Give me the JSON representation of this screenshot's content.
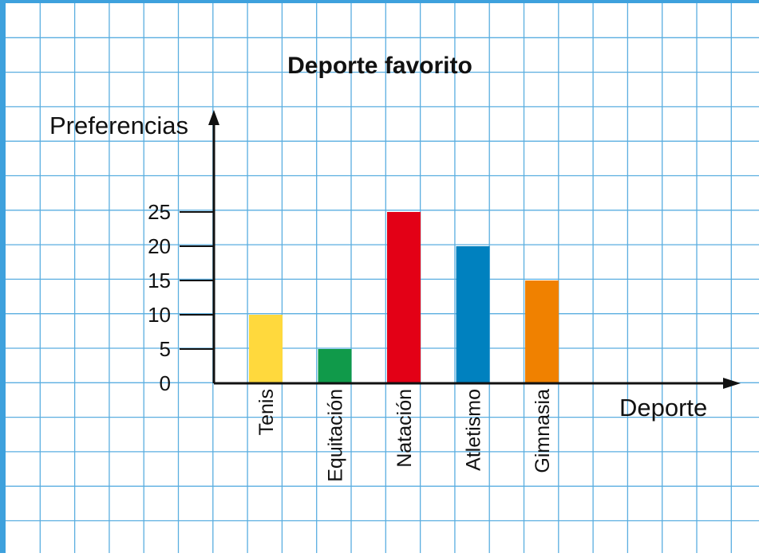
{
  "chart_data": {
    "type": "bar",
    "title": "Deporte favorito",
    "xlabel": "Deporte",
    "ylabel": "Preferencias",
    "categories": [
      "Tenis",
      "Equitación",
      "Natación",
      "Atletismo",
      "Gimnasia"
    ],
    "values": [
      10,
      5,
      25,
      20,
      15
    ],
    "colors": [
      "#ffd93d",
      "#109a4a",
      "#e30016",
      "#0081bf",
      "#f08100"
    ],
    "yticks": [
      0,
      5,
      10,
      15,
      20,
      25
    ],
    "ylim": [
      0,
      25
    ],
    "grid": true,
    "grid_color": "#5aaee0",
    "border_color": "#3ea1dd",
    "legend": "none"
  }
}
